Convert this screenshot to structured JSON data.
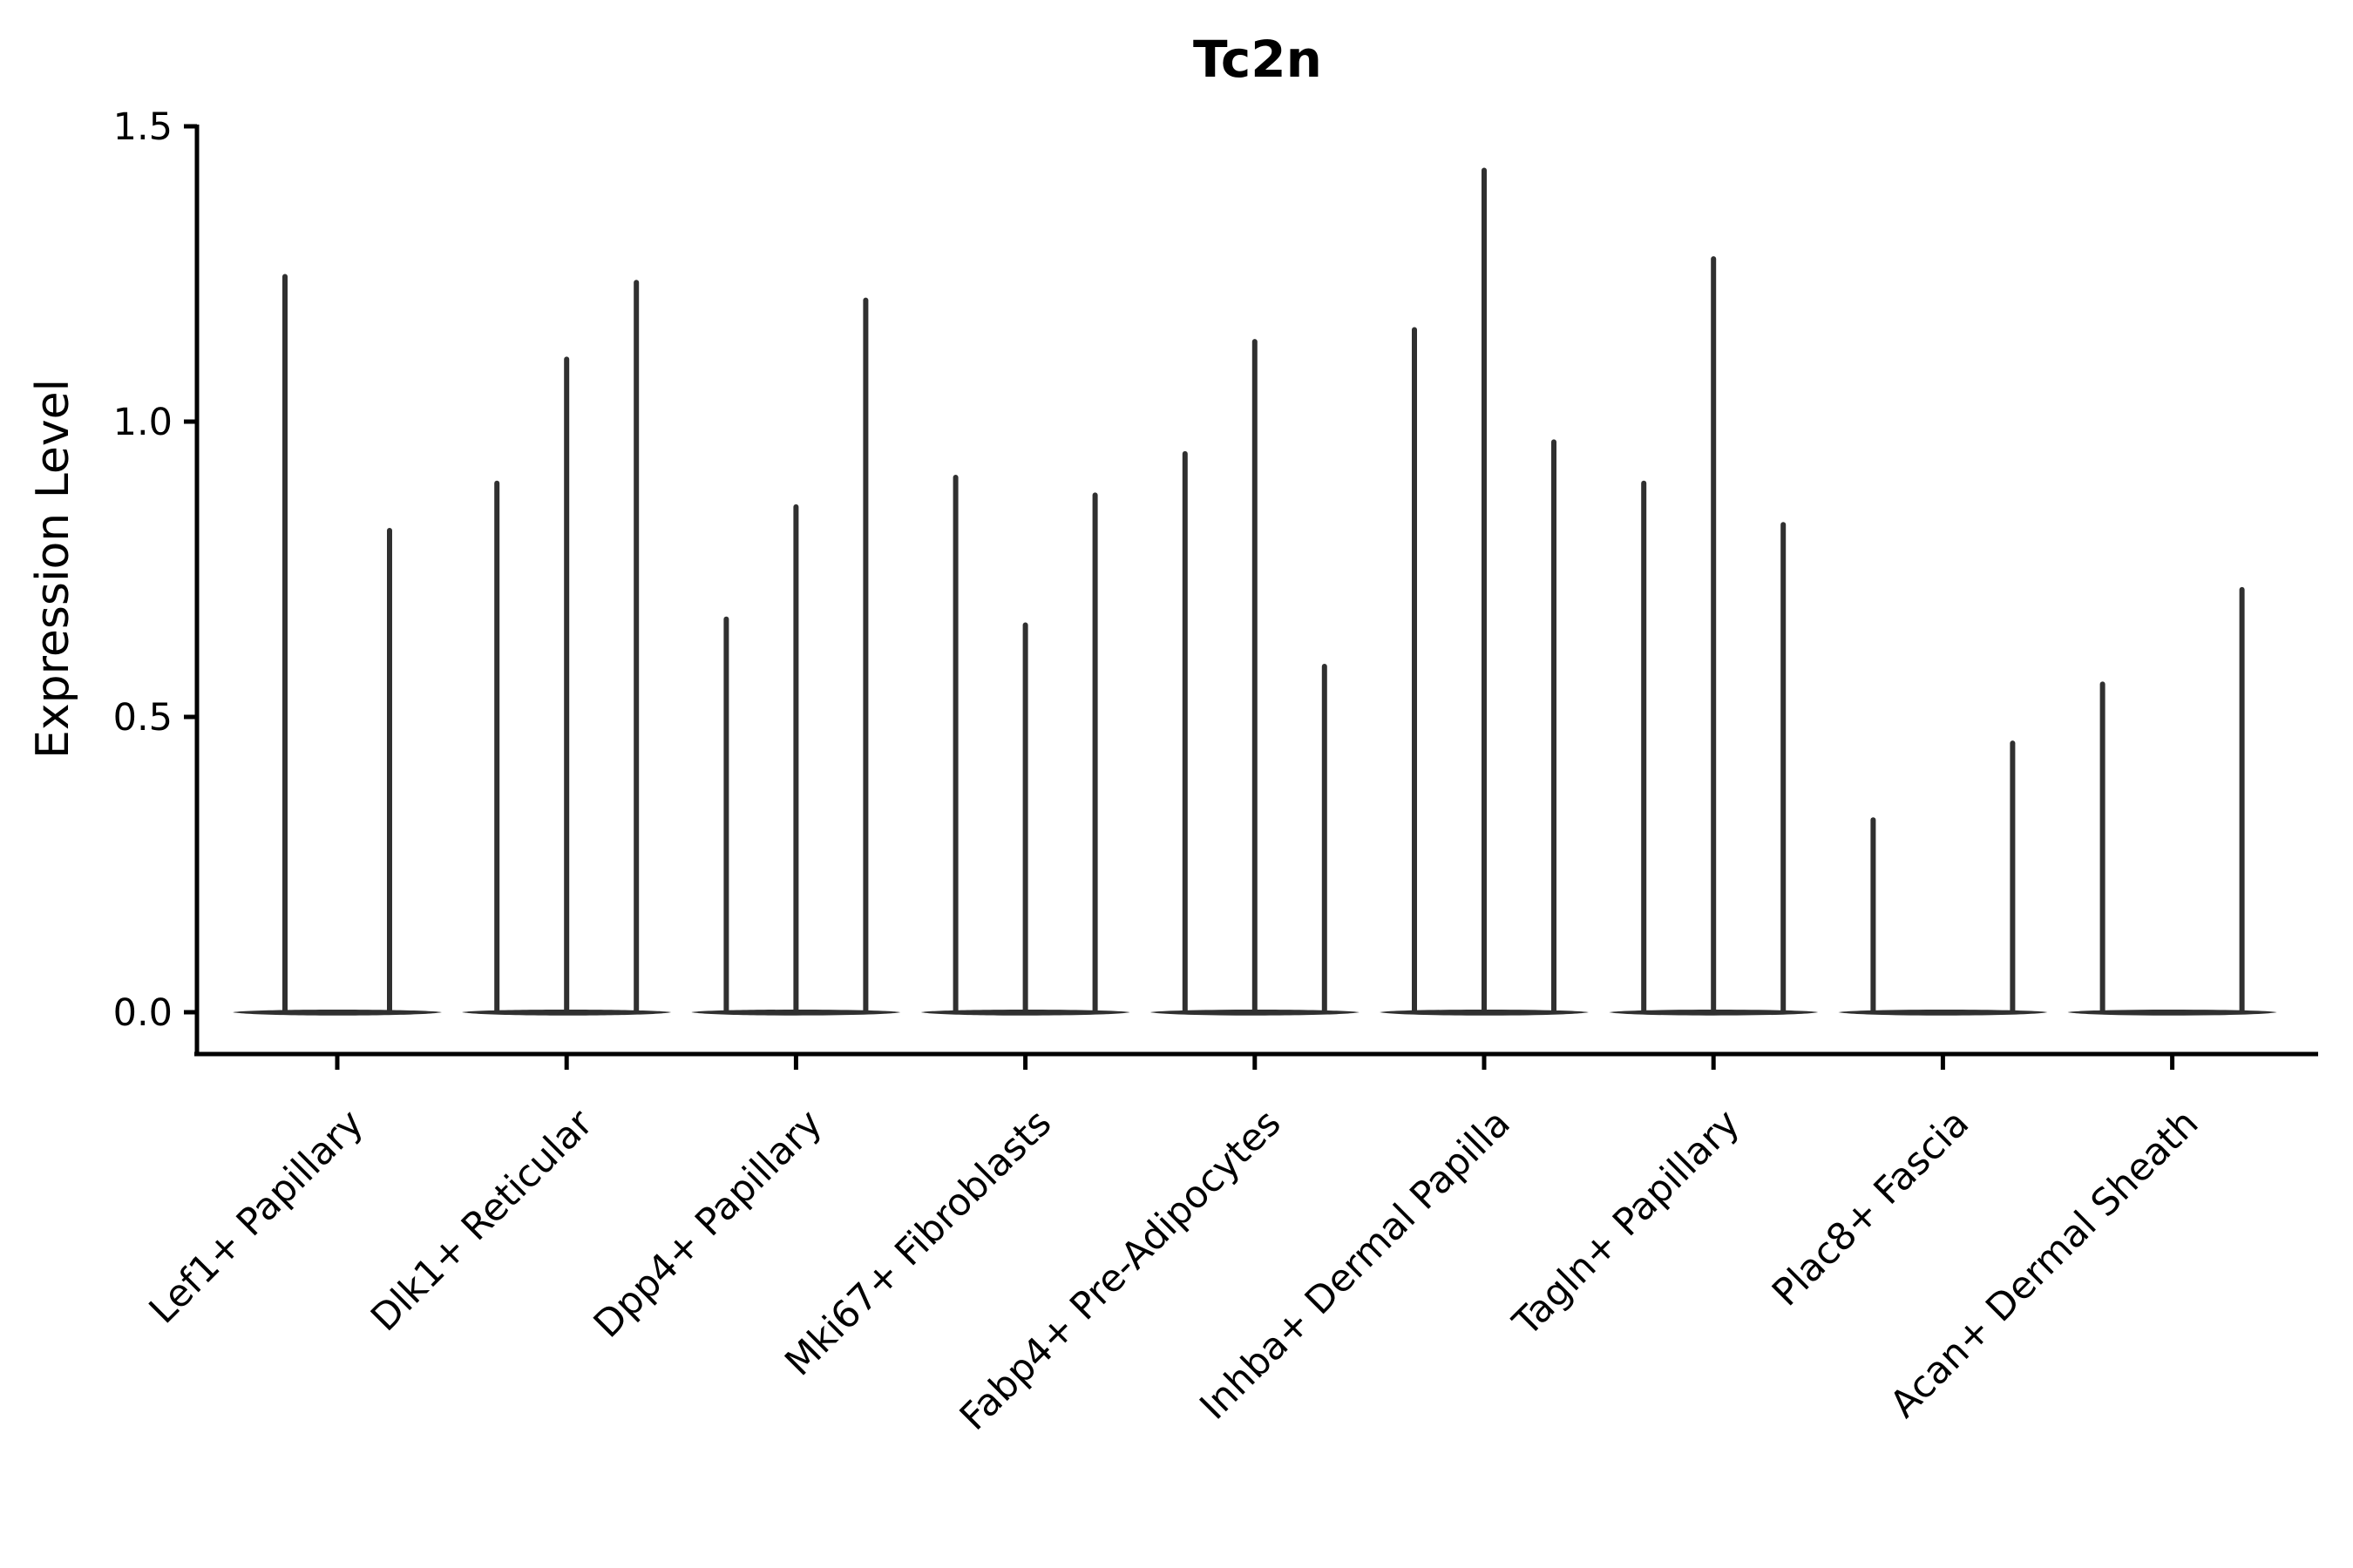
{
  "chart_data": {
    "type": "violin",
    "title": "Tc2n",
    "ylabel": "Expression Level",
    "xlabel": "",
    "ylim": [
      0,
      1.5
    ],
    "ytick_labels": [
      "0.0",
      "0.5",
      "1.0",
      "1.5"
    ],
    "ytick_values": [
      0.0,
      0.5,
      1.0,
      1.5
    ],
    "grid": false,
    "legend_position": "none",
    "x_tick_label_rotation_deg": 45,
    "categories": [
      "Lef1+ Papillary",
      "Dlk1+ Reticular",
      "Dpp4+ Papillary",
      "Mki67+ Fibroblasts",
      "Fabp4+ Pre-Adipocytes",
      "Inhba+ Dermal Papilla",
      "Tagln+ Papillary",
      "Plac8+ Fascia",
      "Acan+ Dermal Sheath"
    ],
    "groups": [
      {
        "label": "Lef1+ Papillary",
        "violin_spike_maxima": [
          1.25,
          0.82
        ]
      },
      {
        "label": "Dlk1+ Reticular",
        "violin_spike_maxima": [
          0.9,
          1.11,
          1.24
        ]
      },
      {
        "label": "Dpp4+ Papillary",
        "violin_spike_maxima": [
          0.67,
          0.86,
          1.21
        ]
      },
      {
        "label": "Mki67+ Fibroblasts",
        "violin_spike_maxima": [
          0.91,
          0.66,
          0.88
        ]
      },
      {
        "label": "Fabp4+ Pre-Adipocytes",
        "violin_spike_maxima": [
          0.95,
          1.14,
          0.59
        ]
      },
      {
        "label": "Inhba+ Dermal Papilla",
        "violin_spike_maxima": [
          1.16,
          1.43,
          0.97
        ]
      },
      {
        "label": "Tagln+ Papillary",
        "violin_spike_maxima": [
          0.9,
          1.28,
          0.83
        ]
      },
      {
        "label": "Plac8+ Fascia",
        "violin_spike_maxima": [
          0.33,
          0.0,
          0.46
        ]
      },
      {
        "label": "Acan+ Dermal Sheath",
        "violin_spike_maxima": [
          0.56,
          0.0,
          0.72
        ]
      }
    ],
    "colors": {
      "violin": "#303030",
      "axis": "#000000",
      "background": "#ffffff"
    }
  }
}
